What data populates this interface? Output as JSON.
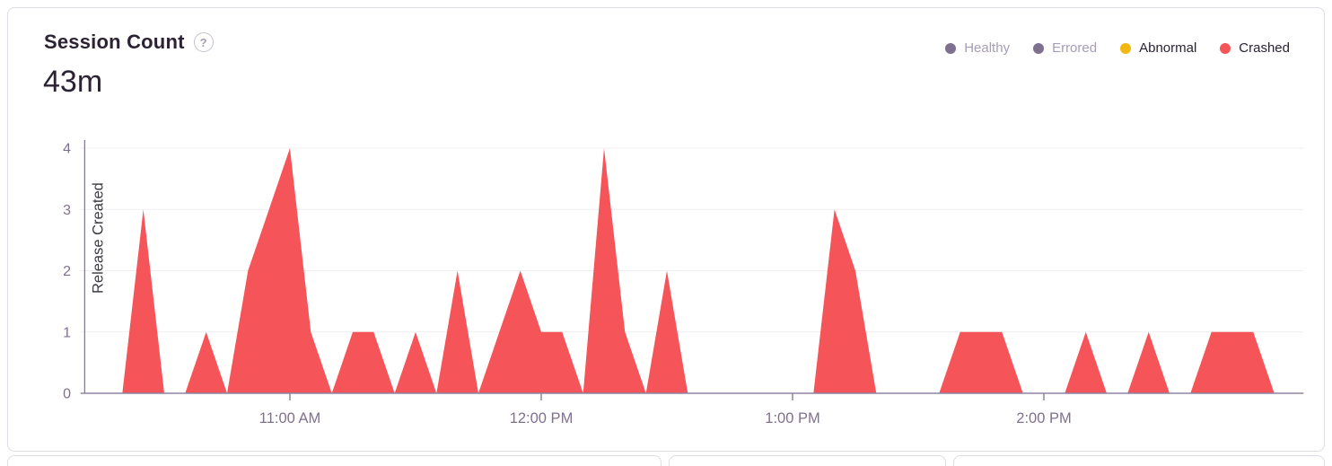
{
  "header": {
    "title": "Session Count",
    "help_label": "?",
    "value": "43m"
  },
  "legend": {
    "items": [
      {
        "label": "Healthy",
        "dot_color": "#80708F",
        "text_color": "#A79DB4",
        "active": false
      },
      {
        "label": "Errored",
        "dot_color": "#80708F",
        "text_color": "#A79DB4",
        "active": false
      },
      {
        "label": "Abnormal",
        "dot_color": "#F2B712",
        "text_color": "#2B2233",
        "active": true
      },
      {
        "label": "Crashed",
        "dot_color": "#F55459",
        "text_color": "#2B2233",
        "active": true
      }
    ]
  },
  "chart_data": {
    "type": "area",
    "title": "Session Count",
    "xlabel": "",
    "ylabel": "",
    "ylim": [
      0,
      4
    ],
    "yticks": [
      0,
      1,
      2,
      3,
      4
    ],
    "xticks": [
      "11:00 AM",
      "12:00 PM",
      "1:00 PM",
      "2:00 PM"
    ],
    "x_start": "10:10",
    "x_end": "15:02",
    "grid": true,
    "legend_position": "top-right",
    "annotation": {
      "label": "Release Created",
      "time": "10:11"
    },
    "series": [
      {
        "name": "Crashed",
        "color": "#F55459",
        "points": [
          [
            "10:10",
            0
          ],
          [
            "10:15",
            0
          ],
          [
            "10:20",
            0
          ],
          [
            "10:25",
            3
          ],
          [
            "10:30",
            0
          ],
          [
            "10:35",
            0
          ],
          [
            "10:40",
            1
          ],
          [
            "10:45",
            0
          ],
          [
            "10:50",
            2
          ],
          [
            "10:55",
            3
          ],
          [
            "11:00",
            4
          ],
          [
            "11:05",
            1
          ],
          [
            "11:10",
            0
          ],
          [
            "11:15",
            1
          ],
          [
            "11:20",
            1
          ],
          [
            "11:25",
            0
          ],
          [
            "11:30",
            1
          ],
          [
            "11:35",
            0
          ],
          [
            "11:40",
            2
          ],
          [
            "11:45",
            0
          ],
          [
            "11:50",
            1
          ],
          [
            "11:55",
            2
          ],
          [
            "12:00",
            1
          ],
          [
            "12:05",
            1
          ],
          [
            "12:10",
            0
          ],
          [
            "12:15",
            4
          ],
          [
            "12:20",
            1
          ],
          [
            "12:25",
            0
          ],
          [
            "12:30",
            2
          ],
          [
            "12:35",
            0
          ],
          [
            "12:40",
            0
          ],
          [
            "12:45",
            0
          ],
          [
            "12:50",
            0
          ],
          [
            "12:55",
            0
          ],
          [
            "13:00",
            0
          ],
          [
            "13:05",
            0
          ],
          [
            "13:10",
            3
          ],
          [
            "13:15",
            2
          ],
          [
            "13:20",
            0
          ],
          [
            "13:25",
            0
          ],
          [
            "13:30",
            0
          ],
          [
            "13:35",
            0
          ],
          [
            "13:40",
            1
          ],
          [
            "13:45",
            1
          ],
          [
            "13:50",
            1
          ],
          [
            "13:55",
            0
          ],
          [
            "14:00",
            0
          ],
          [
            "14:05",
            0
          ],
          [
            "14:10",
            1
          ],
          [
            "14:15",
            0
          ],
          [
            "14:20",
            0
          ],
          [
            "14:25",
            1
          ],
          [
            "14:30",
            0
          ],
          [
            "14:35",
            0
          ],
          [
            "14:40",
            1
          ],
          [
            "14:45",
            1
          ],
          [
            "14:50",
            1
          ],
          [
            "14:55",
            0
          ]
        ]
      }
    ]
  },
  "colors": {
    "card_border": "#E0DCE4",
    "axis_line": "#8F85A0",
    "tick_label": "#80708F",
    "gridline": "#F0EEF2",
    "release_line": "#7B7488",
    "release_text": "#3E3A44",
    "crashed_fill": "#F55459"
  }
}
